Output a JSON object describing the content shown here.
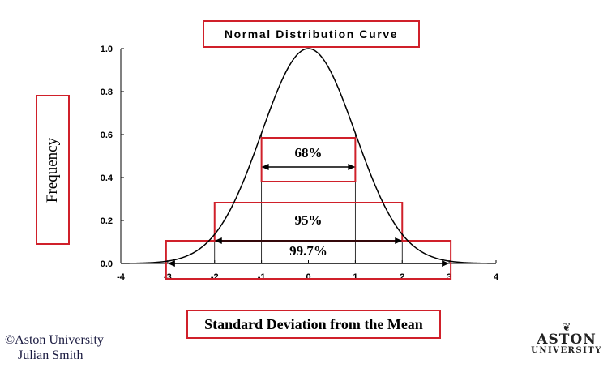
{
  "chart_data": {
    "type": "line",
    "title": "Normal Distribution Curve",
    "xlabel": "Standard Deviation from the Mean",
    "ylabel": "Frequency",
    "xlim": [
      -4,
      4
    ],
    "ylim": [
      0,
      1
    ],
    "x_ticks": [
      "-4",
      "-3",
      "-2",
      "-1",
      "0",
      "1",
      "2",
      "3",
      "4"
    ],
    "y_ticks": [
      "0.0",
      "0.2",
      "0.4",
      "0.6",
      "0.8",
      "1.0"
    ],
    "curve": {
      "x": [
        -4,
        -3.5,
        -3,
        -2.5,
        -2,
        -1.5,
        -1,
        -0.5,
        0,
        0.5,
        1,
        1.5,
        2,
        2.5,
        3,
        3.5,
        4
      ],
      "y": [
        0.0003,
        0.0022,
        0.011,
        0.044,
        0.135,
        0.325,
        0.607,
        0.882,
        1.0,
        0.882,
        0.607,
        0.325,
        0.135,
        0.044,
        0.011,
        0.0022,
        0.0003
      ]
    },
    "grid": false,
    "annotations": [
      {
        "label": "68%",
        "from": -1,
        "to": 1
      },
      {
        "label": "95%",
        "from": -2,
        "to": 2
      },
      {
        "label": "99.7%",
        "from": -3,
        "to": 3
      }
    ],
    "colors": {
      "curve": "#000000",
      "box": "#d0202a"
    }
  },
  "footer": {
    "copyright": "©Aston University",
    "author": "Julian Smith"
  },
  "logo": {
    "line1": "ASTON",
    "line2": "UNIVERSITY"
  }
}
